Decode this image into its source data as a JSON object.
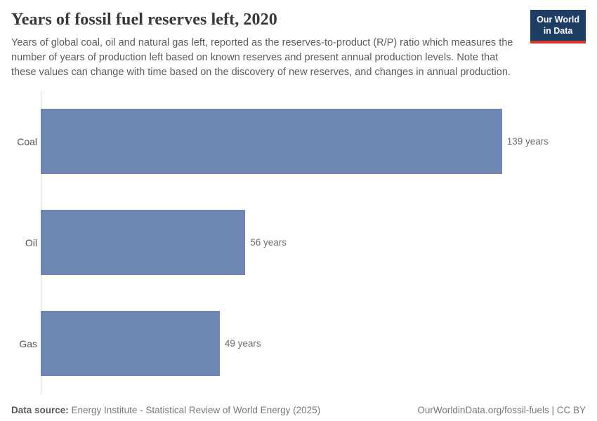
{
  "header": {
    "title": "Years of fossil fuel reserves left, 2020",
    "subtitle": "Years of global coal, oil and natural gas left, reported as the reserves-to-product (R/P) ratio which measures the number of years of production left based on known reserves and present annual production levels. Note that these values can change with time based on the discovery of new reserves, and changes in annual production.",
    "logo": {
      "line1": "Our World",
      "line2": "in Data",
      "bg_color": "#1d3d63",
      "accent_color": "#cf3b32"
    }
  },
  "chart_data": {
    "type": "bar",
    "orientation": "horizontal",
    "title": "Years of fossil fuel reserves left, 2020",
    "categories": [
      "Coal",
      "Oil",
      "Gas"
    ],
    "values": [
      139,
      56,
      49
    ],
    "value_labels": [
      "139 years",
      "56 years",
      "49 years"
    ],
    "unit": "years",
    "xlim": [
      0,
      139
    ],
    "grid": false,
    "legend": "none",
    "bar_color": "#6e87b2",
    "axis_color": "#dcdcdc"
  },
  "footer": {
    "source_label": "Data source:",
    "source_text": " Energy Institute - Statistical Review of World Energy (2025)",
    "right_text": "OurWorldinData.org/fossil-fuels | CC BY"
  }
}
